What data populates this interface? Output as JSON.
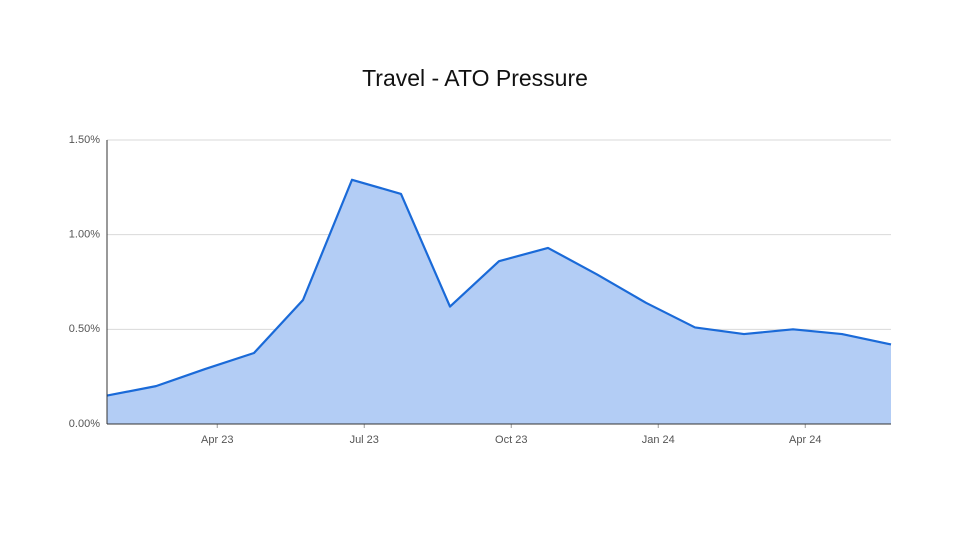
{
  "chart_data": {
    "type": "area",
    "title": "Travel - ATO Pressure",
    "x": [
      0,
      1,
      2,
      3,
      4,
      5,
      6,
      7,
      8,
      9,
      10,
      11,
      12,
      13,
      14,
      15,
      16
    ],
    "values": [
      0.15,
      0.2,
      0.29,
      0.375,
      0.655,
      1.29,
      1.215,
      0.62,
      0.86,
      0.93,
      0.79,
      0.64,
      0.51,
      0.475,
      0.5,
      0.475,
      0.42
    ],
    "color": "#1a6ad8",
    "fill": "#b3cdf5",
    "xlim": [
      0,
      16
    ],
    "xticks": [
      {
        "value": 2.25,
        "label": "Apr 23"
      },
      {
        "value": 5.25,
        "label": "Jul 23"
      },
      {
        "value": 8.25,
        "label": "Oct 23"
      },
      {
        "value": 11.25,
        "label": "Jan 24"
      },
      {
        "value": 14.25,
        "label": "Apr 24"
      }
    ],
    "ylim": [
      0,
      1.5
    ],
    "yticks": [
      {
        "value": 0,
        "label": "0.00%"
      },
      {
        "value": 0.5,
        "label": "0.50%"
      },
      {
        "value": 1,
        "label": "1.00%"
      },
      {
        "value": 1.5,
        "label": "1.50%"
      }
    ],
    "grid": true
  }
}
